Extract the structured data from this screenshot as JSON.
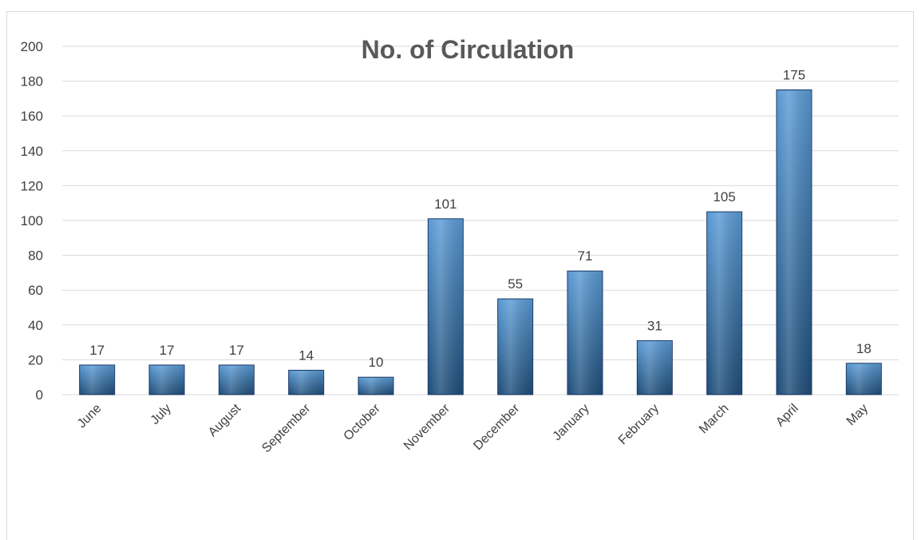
{
  "chart_data": {
    "type": "bar",
    "title": "No. of Circulation",
    "xlabel": "",
    "ylabel": "",
    "categories": [
      "June",
      "July",
      "August",
      "September",
      "October",
      "November",
      "December",
      "January",
      "February",
      "March",
      "April",
      "May"
    ],
    "series": [
      {
        "values": [
          17,
          17,
          17,
          14,
          10,
          101,
          55,
          71,
          31,
          105,
          175,
          18
        ]
      }
    ],
    "ylim": [
      0,
      200
    ],
    "yticks": [
      0,
      20,
      40,
      60,
      80,
      100,
      120,
      140,
      160,
      180,
      200
    ],
    "grid": true,
    "legend": "none",
    "data_labels": true,
    "colors": {
      "bar_top": "#5b9bd5",
      "bar_bottom": "#1f4e79",
      "bar_stroke": "#1f3864",
      "gridline": "#d9d9d9"
    }
  }
}
